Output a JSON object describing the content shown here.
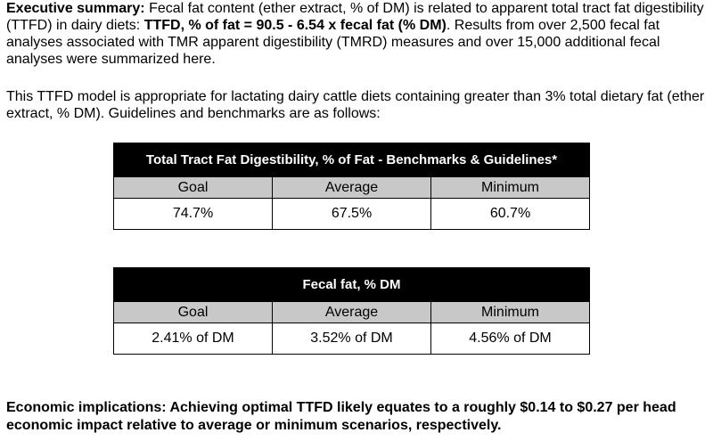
{
  "summary": {
    "label": "Executive summary:",
    "text1": " Fecal fat content (ether extract, % of DM) is related to apparent total tract fat digestibility (TTFD) in dairy diets: ",
    "equation": "TTFD, % of fat = 90.5 - 6.54 x fecal fat (% DM)",
    "text2": ". Results from over 2,500 fecal fat analyses associated with TMR apparent digestibility (TMRD) measures and over 15,000 additional fecal analyses were summarized here."
  },
  "model_paragraph": "This TTFD model is appropriate for lactating dairy cattle diets containing greater than 3% total dietary fat (ether extract, % DM). Guidelines and benchmarks are as follows:",
  "table1": {
    "title": "Total Tract Fat Digestibility, % of Fat - Benchmarks & Guidelines*",
    "headers": [
      "Goal",
      "Average",
      "Minimum"
    ],
    "values": [
      "74.7%",
      "67.5%",
      "60.7%"
    ]
  },
  "table2": {
    "title": "Fecal fat, % DM",
    "headers": [
      "Goal",
      "Average",
      "Minimum"
    ],
    "values": [
      "2.41% of DM",
      "3.52% of DM",
      "4.56% of DM"
    ]
  },
  "economic": "Economic implications: Achieving optimal TTFD likely equates to a roughly $0.14 to $0.27 per head economic impact relative to average or minimum scenarios, respectively."
}
